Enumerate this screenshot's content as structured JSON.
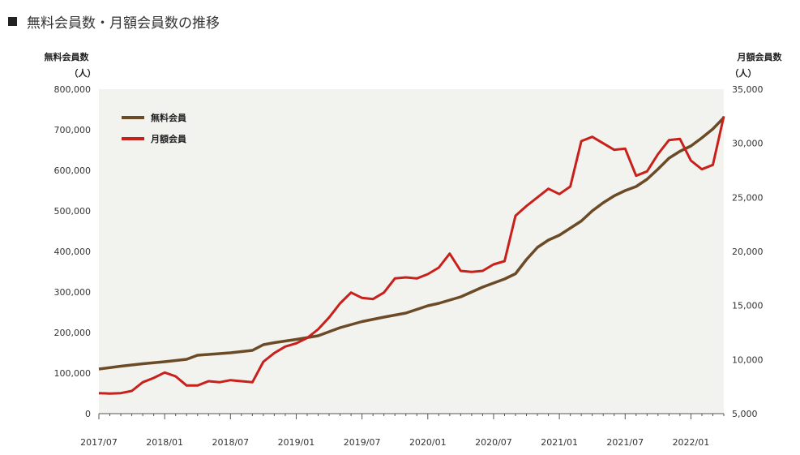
{
  "page": {
    "title_marker": "■",
    "title": "無料会員数・月額会員数の推移"
  },
  "chart_data": {
    "type": "line",
    "title": "無料会員数・月額会員数の推移",
    "ylabel_left": "無料会員数",
    "ylabel_left_unit": "（人）",
    "ylabel_right": "月額会員数",
    "ylabel_right_unit": "（人）",
    "ylim_left": [
      0,
      800000
    ],
    "ylim_right": [
      5000,
      35000
    ],
    "yticks_left": [
      "0",
      "100,000",
      "200,000",
      "300,000",
      "400,000",
      "500,000",
      "600,000",
      "700,000",
      "800,000"
    ],
    "yticks_right": [
      "5,000",
      "10,000",
      "15,000",
      "20,000",
      "25,000",
      "30,000",
      "35,000"
    ],
    "xticks": [
      "2017/07",
      "2018/01",
      "2018/07",
      "2019/01",
      "2019/07",
      "2020/01",
      "2020/07",
      "2021/01",
      "2021/07",
      "2022/01"
    ],
    "grid": false,
    "legend_position": "top-left",
    "colors": {
      "free": "#6b4a26",
      "monthly": "#c8201a",
      "plot_bg": "#f2f2ef"
    },
    "series": [
      {
        "name": "無料会員",
        "axis": "left",
        "x": [
          0,
          2,
          4,
          6,
          8,
          9,
          12,
          14,
          15,
          16,
          18,
          20,
          22,
          24,
          26,
          28,
          30,
          31,
          32,
          33,
          34,
          35,
          36,
          37,
          38,
          39,
          40,
          41,
          42,
          44,
          45,
          46,
          47,
          48,
          49,
          50,
          51,
          52,
          53,
          54,
          55,
          56,
          57
        ],
        "y": [
          110000,
          117000,
          123000,
          128000,
          134000,
          144000,
          150000,
          156000,
          170000,
          175000,
          183000,
          192000,
          212000,
          227000,
          238000,
          248000,
          266000,
          272000,
          280000,
          288000,
          300000,
          312000,
          322000,
          332000,
          345000,
          380000,
          410000,
          428000,
          440000,
          475000,
          500000,
          520000,
          537000,
          550000,
          560000,
          578000,
          603000,
          630000,
          647000,
          660000,
          680000,
          702000,
          730000
        ]
      },
      {
        "name": "月額会員",
        "axis": "right",
        "x": [
          0,
          1,
          2,
          3,
          4,
          5,
          6,
          7,
          8,
          9,
          10,
          11,
          12,
          13,
          14,
          15,
          16,
          17,
          18,
          19,
          20,
          21,
          22,
          23,
          24,
          25,
          26,
          27,
          28,
          29,
          30,
          31,
          32,
          33,
          34,
          35,
          36,
          37,
          38,
          39,
          40,
          41,
          42,
          43,
          44,
          45,
          46,
          47,
          48,
          49,
          50,
          51,
          52,
          53,
          54,
          55,
          56,
          57
        ],
        "y": [
          6900,
          6850,
          6900,
          7100,
          7900,
          8300,
          8800,
          8450,
          7600,
          7600,
          8000,
          7900,
          8100,
          8000,
          7900,
          9800,
          10600,
          11200,
          11500,
          12000,
          12800,
          13900,
          15200,
          16200,
          15700,
          15600,
          16200,
          17500,
          17600,
          17500,
          17900,
          18500,
          19800,
          18200,
          18100,
          18200,
          18800,
          19100,
          23300,
          24200,
          25000,
          25800,
          25300,
          26000,
          30200,
          30600,
          30000,
          29400,
          29500,
          27000,
          27400,
          29000,
          30300,
          30400,
          28400,
          27600,
          28000,
          32500
        ]
      }
    ]
  }
}
